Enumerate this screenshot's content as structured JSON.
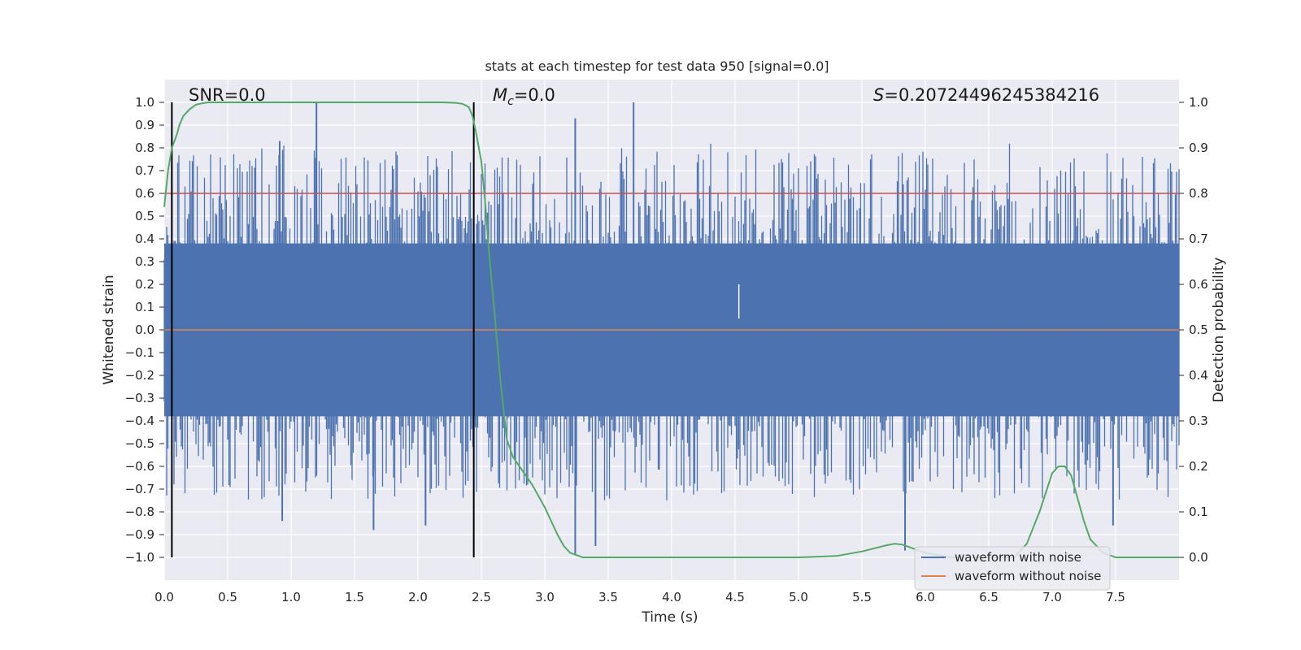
{
  "chart_data": {
    "type": "line",
    "title": "stats at each timestep for test data 950 [signal=0.0]",
    "xlabel": "Time (s)",
    "ylabel": "Whitened strain",
    "y2label": "Detection probability",
    "xlim": [
      0.0,
      8.0
    ],
    "ylim": [
      -1.1,
      1.1
    ],
    "y2lim": [
      -0.05,
      1.05
    ],
    "x_ticks": [
      "0.0",
      "0.5",
      "1.0",
      "1.5",
      "2.0",
      "2.5",
      "3.0",
      "3.5",
      "4.0",
      "4.5",
      "5.0",
      "5.5",
      "6.0",
      "6.5",
      "7.0",
      "7.5"
    ],
    "x_tick_values": [
      0.0,
      0.5,
      1.0,
      1.5,
      2.0,
      2.5,
      3.0,
      3.5,
      4.0,
      4.5,
      5.0,
      5.5,
      6.0,
      6.5,
      7.0,
      7.5
    ],
    "y_ticks": [
      "1.0",
      "0.9",
      "0.8",
      "0.7",
      "0.6",
      "0.5",
      "0.4",
      "0.3",
      "0.2",
      "0.1",
      "0.0",
      "−0.1",
      "−0.2",
      "−0.3",
      "−0.4",
      "−0.5",
      "−0.6",
      "−0.7",
      "−0.8",
      "−0.9",
      "−1.0"
    ],
    "y_tick_values": [
      1.0,
      0.9,
      0.8,
      0.7,
      0.6,
      0.5,
      0.4,
      0.3,
      0.2,
      0.1,
      0.0,
      -0.1,
      -0.2,
      -0.3,
      -0.4,
      -0.5,
      -0.6,
      -0.7,
      -0.8,
      -0.9,
      -1.0
    ],
    "y2_ticks": [
      "1.0",
      "0.9",
      "0.8",
      "0.7",
      "0.6",
      "0.5",
      "0.4",
      "0.3",
      "0.2",
      "0.1",
      "0.0"
    ],
    "y2_tick_values": [
      1.0,
      0.9,
      0.8,
      0.7,
      0.6,
      0.5,
      0.4,
      0.3,
      0.2,
      0.1,
      0.0
    ],
    "annotations": {
      "snr_label": "SNR=0.0",
      "mc_symbol": "M",
      "mc_subscript": "c",
      "mc_value": "=0.0",
      "s_symbol": "S",
      "s_value": "=0.20724496245384216"
    },
    "vertical_lines": [
      0.06,
      2.44
    ],
    "vertical_line_range": [
      -1.0,
      1.0
    ],
    "threshold_line": 0.8,
    "noise_series": {
      "name": "waveform with noise",
      "color": "#4c72b0",
      "body_amplitude": 0.38,
      "spikes": [
        {
          "x": 0.91,
          "y": 0.83
        },
        {
          "x": 1.2,
          "y": 1.0
        },
        {
          "x": 0.93,
          "y": -0.84
        },
        {
          "x": 1.65,
          "y": -0.88
        },
        {
          "x": 2.06,
          "y": -0.86
        },
        {
          "x": 3.24,
          "y": 0.93
        },
        {
          "x": 3.7,
          "y": 1.0
        },
        {
          "x": 3.24,
          "y": -0.99
        },
        {
          "x": 3.4,
          "y": -0.95
        },
        {
          "x": 5.84,
          "y": -0.97
        },
        {
          "x": 4.53,
          "y": 0.05
        },
        {
          "x": 7.48,
          "y": -0.86
        }
      ]
    },
    "clean_series": {
      "name": "waveform without noise",
      "color": "#dd8452",
      "value": 0.0
    },
    "probability_series": {
      "name": "Detection probability",
      "color": "#55a868",
      "x": [
        0.0,
        0.03,
        0.06,
        0.1,
        0.12,
        0.15,
        0.2,
        0.25,
        0.3,
        0.35,
        0.4,
        0.5,
        0.6,
        0.8,
        1.0,
        1.5,
        2.0,
        2.2,
        2.3,
        2.35,
        2.4,
        2.43,
        2.46,
        2.5,
        2.53,
        2.56,
        2.6,
        2.65,
        2.7,
        2.75,
        2.8,
        2.9,
        3.0,
        3.05,
        3.1,
        3.15,
        3.2,
        3.3,
        3.4,
        4.0,
        5.0,
        5.3,
        5.5,
        5.6,
        5.7,
        5.76,
        5.82,
        5.9,
        6.0,
        6.2,
        6.5,
        6.7,
        6.8,
        6.9,
        7.0,
        7.05,
        7.1,
        7.15,
        7.2,
        7.25,
        7.3,
        7.4,
        7.5,
        8.0
      ],
      "y": [
        0.77,
        0.85,
        0.9,
        0.93,
        0.95,
        0.97,
        0.985,
        0.995,
        0.998,
        1.0,
        1.0,
        1.0,
        1.0,
        1.0,
        1.0,
        1.0,
        1.0,
        1.0,
        0.999,
        0.997,
        0.99,
        0.97,
        0.93,
        0.87,
        0.78,
        0.67,
        0.55,
        0.39,
        0.26,
        0.22,
        0.2,
        0.16,
        0.11,
        0.08,
        0.05,
        0.025,
        0.01,
        0.0,
        0.0,
        0.0,
        0.0,
        0.003,
        0.013,
        0.02,
        0.027,
        0.03,
        0.028,
        0.02,
        0.01,
        0.0,
        0.0,
        0.0,
        0.03,
        0.1,
        0.185,
        0.2,
        0.2,
        0.18,
        0.13,
        0.08,
        0.04,
        0.01,
        0.0,
        0.0
      ]
    },
    "legend": {
      "position": "bottom-right",
      "entries": [
        {
          "label": "waveform with noise",
          "color": "#4c72b0"
        },
        {
          "label": "waveform without noise",
          "color": "#dd8452"
        }
      ]
    },
    "threshold_color": "#c44e52",
    "vline_color": "#000000",
    "plot_bg": "#eaeaf2",
    "grid_color": "#ffffff",
    "grid": true
  }
}
